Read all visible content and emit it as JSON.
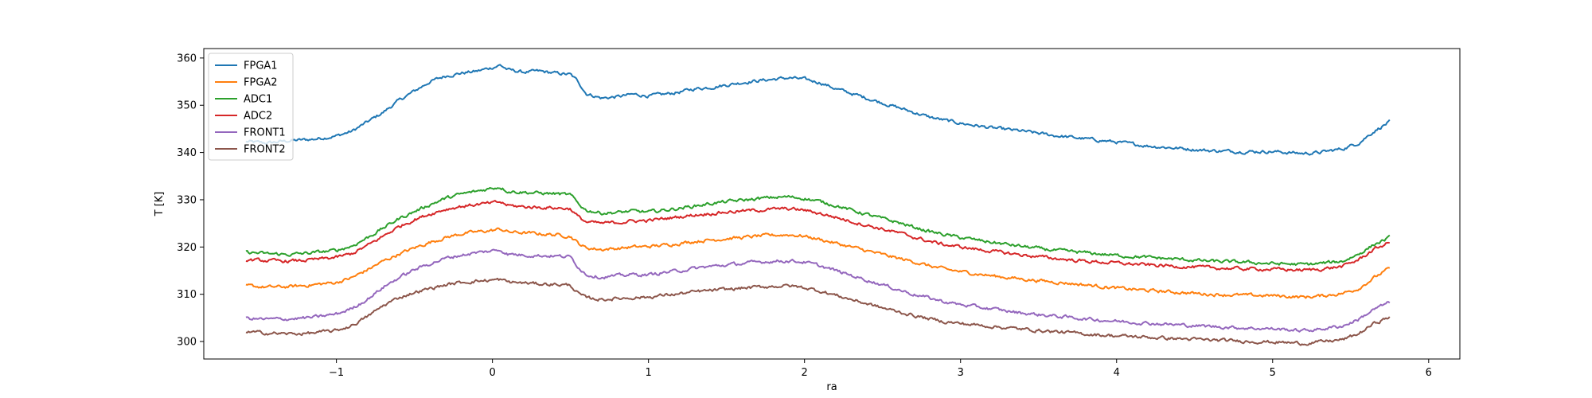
{
  "chart_data": {
    "type": "line",
    "title": "",
    "xlabel": "ra",
    "ylabel": "T [K]",
    "xlim": [
      -1.85,
      6.2
    ],
    "ylim": [
      296.3,
      362
    ],
    "xticks": [
      -1,
      0,
      1,
      2,
      3,
      4,
      5,
      6
    ],
    "xtick_labels": [
      "−1",
      "0",
      "1",
      "2",
      "3",
      "4",
      "5",
      "6"
    ],
    "yticks": [
      300,
      310,
      320,
      330,
      340,
      350,
      360
    ],
    "ytick_labels": [
      "300",
      "310",
      "320",
      "330",
      "340",
      "350",
      "360"
    ],
    "grid": false,
    "legend_position": "upper left",
    "series": [
      {
        "name": "FPGA1",
        "color": "#1f77b4",
        "x": [
          -1.58,
          -1.45,
          -1.3,
          -1.15,
          -1.0,
          -0.9,
          -0.8,
          -0.7,
          -0.6,
          -0.5,
          -0.4,
          -0.3,
          -0.2,
          -0.1,
          0.0,
          0.05,
          0.1,
          0.2,
          0.3,
          0.4,
          0.5,
          0.55,
          0.6,
          0.7,
          0.8,
          0.9,
          1.0,
          1.1,
          1.2,
          1.3,
          1.4,
          1.5,
          1.6,
          1.7,
          1.8,
          1.9,
          2.0,
          2.1,
          2.2,
          2.3,
          2.4,
          2.5,
          2.6,
          2.7,
          2.8,
          2.9,
          3.0,
          3.2,
          3.4,
          3.6,
          3.8,
          4.0,
          4.2,
          4.4,
          4.6,
          4.8,
          5.0,
          5.2,
          5.3,
          5.45,
          5.55,
          5.65,
          5.75
        ],
        "y": [
          342.3,
          342.0,
          342.5,
          342.8,
          343.5,
          344.5,
          346.5,
          348.5,
          351.0,
          353.0,
          355.0,
          356.2,
          356.8,
          357.2,
          358.0,
          358.5,
          357.5,
          357.0,
          357.2,
          356.8,
          356.5,
          355.0,
          352.5,
          351.5,
          351.8,
          352.3,
          352.0,
          352.3,
          352.8,
          353.5,
          353.8,
          354.3,
          354.8,
          355.2,
          355.5,
          355.8,
          355.5,
          354.8,
          353.5,
          352.5,
          351.5,
          350.5,
          349.5,
          348.5,
          347.5,
          346.8,
          346.2,
          345.2,
          344.5,
          343.6,
          342.9,
          342.2,
          341.4,
          340.9,
          340.4,
          340.2,
          340.2,
          339.8,
          340.0,
          340.8,
          342.0,
          344.5,
          346.5
        ]
      },
      {
        "name": "FPGA2",
        "color": "#ff7f0e",
        "x": [
          -1.58,
          -1.45,
          -1.3,
          -1.15,
          -1.0,
          -0.9,
          -0.8,
          -0.7,
          -0.6,
          -0.5,
          -0.4,
          -0.3,
          -0.2,
          -0.1,
          0.0,
          0.05,
          0.1,
          0.2,
          0.3,
          0.4,
          0.5,
          0.55,
          0.6,
          0.7,
          0.8,
          0.9,
          1.0,
          1.1,
          1.2,
          1.3,
          1.4,
          1.5,
          1.6,
          1.7,
          1.8,
          1.9,
          2.0,
          2.1,
          2.2,
          2.3,
          2.4,
          2.5,
          2.6,
          2.7,
          2.8,
          2.9,
          3.0,
          3.2,
          3.4,
          3.6,
          3.8,
          4.0,
          4.2,
          4.4,
          4.6,
          4.8,
          5.0,
          5.2,
          5.3,
          5.45,
          5.55,
          5.65,
          5.75
        ],
        "y": [
          311.8,
          311.5,
          311.6,
          312.0,
          312.5,
          313.5,
          315.2,
          317.0,
          318.5,
          319.8,
          321.0,
          322.0,
          322.8,
          323.2,
          323.5,
          323.8,
          323.2,
          323.0,
          322.8,
          322.6,
          322.3,
          320.8,
          319.8,
          319.5,
          319.7,
          320.0,
          320.1,
          320.4,
          320.8,
          321.2,
          321.5,
          321.8,
          322.0,
          322.3,
          322.5,
          322.6,
          322.3,
          321.6,
          320.8,
          320.0,
          319.2,
          318.4,
          317.6,
          316.9,
          316.0,
          315.3,
          314.8,
          313.9,
          313.2,
          312.6,
          312.0,
          311.3,
          310.8,
          310.4,
          310.0,
          309.8,
          309.7,
          309.4,
          309.6,
          310.2,
          311.2,
          313.5,
          315.5
        ]
      },
      {
        "name": "ADC1",
        "color": "#2ca02c",
        "x": [
          -1.58,
          -1.45,
          -1.3,
          -1.15,
          -1.0,
          -0.9,
          -0.8,
          -0.7,
          -0.6,
          -0.5,
          -0.4,
          -0.3,
          -0.2,
          -0.1,
          0.0,
          0.05,
          0.1,
          0.2,
          0.3,
          0.4,
          0.5,
          0.55,
          0.6,
          0.7,
          0.8,
          0.9,
          1.0,
          1.1,
          1.2,
          1.3,
          1.4,
          1.5,
          1.6,
          1.7,
          1.8,
          1.9,
          2.0,
          2.1,
          2.2,
          2.3,
          2.4,
          2.5,
          2.6,
          2.7,
          2.8,
          2.9,
          3.0,
          3.2,
          3.4,
          3.6,
          3.8,
          4.0,
          4.2,
          4.4,
          4.6,
          4.8,
          5.0,
          5.2,
          5.3,
          5.45,
          5.55,
          5.65,
          5.75
        ],
        "y": [
          318.9,
          318.6,
          318.4,
          318.8,
          319.3,
          320.2,
          322.0,
          324.0,
          326.0,
          327.5,
          329.0,
          330.3,
          331.2,
          331.8,
          332.5,
          332.7,
          331.8,
          331.6,
          331.4,
          331.3,
          331.0,
          329.2,
          327.8,
          327.2,
          327.3,
          327.6,
          327.4,
          327.8,
          328.2,
          328.7,
          329.2,
          329.6,
          329.9,
          330.2,
          330.5,
          330.6,
          330.3,
          329.6,
          328.8,
          327.8,
          326.9,
          326.0,
          325.2,
          324.2,
          323.3,
          322.6,
          322.0,
          321.0,
          320.1,
          319.3,
          318.8,
          318.2,
          317.8,
          317.4,
          317.0,
          316.8,
          316.5,
          316.3,
          316.5,
          317.0,
          318.5,
          320.5,
          322.0
        ]
      },
      {
        "name": "ADC2",
        "color": "#d62728",
        "x": [
          -1.58,
          -1.45,
          -1.3,
          -1.15,
          -1.0,
          -0.9,
          -0.8,
          -0.7,
          -0.6,
          -0.5,
          -0.4,
          -0.3,
          -0.2,
          -0.1,
          0.0,
          0.05,
          0.1,
          0.2,
          0.3,
          0.4,
          0.5,
          0.55,
          0.6,
          0.7,
          0.8,
          0.9,
          1.0,
          1.1,
          1.2,
          1.3,
          1.4,
          1.5,
          1.6,
          1.7,
          1.8,
          1.9,
          2.0,
          2.1,
          2.2,
          2.3,
          2.4,
          2.5,
          2.6,
          2.7,
          2.8,
          2.9,
          3.0,
          3.2,
          3.4,
          3.6,
          3.8,
          4.0,
          4.2,
          4.4,
          4.6,
          4.8,
          5.0,
          5.2,
          5.3,
          5.45,
          5.55,
          5.65,
          5.75
        ],
        "y": [
          317.3,
          317.1,
          317.0,
          317.3,
          317.8,
          318.6,
          320.3,
          322.3,
          324.3,
          325.8,
          327.0,
          328.0,
          328.6,
          329.0,
          329.3,
          329.5,
          328.8,
          328.5,
          328.4,
          328.3,
          328.1,
          326.4,
          325.3,
          325.0,
          325.2,
          325.5,
          325.6,
          326.0,
          326.4,
          326.8,
          327.1,
          327.4,
          327.6,
          327.8,
          328.0,
          328.1,
          327.8,
          327.1,
          326.3,
          325.4,
          324.6,
          323.8,
          323.0,
          322.1,
          321.2,
          320.5,
          320.0,
          319.1,
          318.3,
          317.6,
          317.0,
          316.6,
          316.2,
          315.9,
          315.6,
          315.4,
          315.3,
          315.1,
          315.3,
          315.9,
          317.3,
          319.5,
          321.0
        ]
      },
      {
        "name": "FRONT1",
        "color": "#9467bd",
        "x": [
          -1.58,
          -1.45,
          -1.3,
          -1.15,
          -1.0,
          -0.9,
          -0.8,
          -0.7,
          -0.6,
          -0.5,
          -0.4,
          -0.3,
          -0.2,
          -0.1,
          0.0,
          0.05,
          0.1,
          0.2,
          0.3,
          0.4,
          0.5,
          0.55,
          0.6,
          0.7,
          0.8,
          0.9,
          1.0,
          1.1,
          1.2,
          1.3,
          1.4,
          1.5,
          1.6,
          1.7,
          1.8,
          1.9,
          2.0,
          2.1,
          2.2,
          2.3,
          2.4,
          2.5,
          2.6,
          2.7,
          2.8,
          2.9,
          3.0,
          3.2,
          3.4,
          3.6,
          3.8,
          4.0,
          4.2,
          4.4,
          4.6,
          4.8,
          5.0,
          5.2,
          5.3,
          5.45,
          5.55,
          5.65,
          5.75
        ],
        "y": [
          304.9,
          304.7,
          304.8,
          305.1,
          305.8,
          307.0,
          309.0,
          311.5,
          313.5,
          315.2,
          316.5,
          317.6,
          318.3,
          318.8,
          319.2,
          319.4,
          318.5,
          318.3,
          318.2,
          318.1,
          317.9,
          315.8,
          314.2,
          313.6,
          313.9,
          314.2,
          314.1,
          314.6,
          315.0,
          315.5,
          315.9,
          316.2,
          316.5,
          316.8,
          317.0,
          317.1,
          316.8,
          316.0,
          315.0,
          314.0,
          313.0,
          312.0,
          311.0,
          310.0,
          309.2,
          308.4,
          307.8,
          306.9,
          306.0,
          305.4,
          304.8,
          304.3,
          303.9,
          303.5,
          303.2,
          302.9,
          302.7,
          302.3,
          302.6,
          303.3,
          304.7,
          306.8,
          308.3
        ]
      },
      {
        "name": "FRONT2",
        "color": "#8c564b",
        "x": [
          -1.58,
          -1.45,
          -1.3,
          -1.15,
          -1.0,
          -0.9,
          -0.8,
          -0.7,
          -0.6,
          -0.5,
          -0.4,
          -0.3,
          -0.2,
          -0.1,
          0.0,
          0.05,
          0.1,
          0.2,
          0.3,
          0.4,
          0.5,
          0.55,
          0.6,
          0.7,
          0.8,
          0.9,
          1.0,
          1.1,
          1.2,
          1.3,
          1.4,
          1.5,
          1.6,
          1.7,
          1.8,
          1.9,
          2.0,
          2.1,
          2.2,
          2.3,
          2.4,
          2.5,
          2.6,
          2.7,
          2.8,
          2.9,
          3.0,
          3.2,
          3.4,
          3.6,
          3.8,
          4.0,
          4.2,
          4.4,
          4.6,
          4.8,
          5.0,
          5.2,
          5.3,
          5.45,
          5.55,
          5.65,
          5.75
        ],
        "y": [
          302.0,
          301.8,
          301.6,
          301.8,
          302.3,
          303.4,
          305.3,
          307.6,
          309.3,
          310.4,
          311.2,
          312.0,
          312.5,
          312.8,
          313.0,
          313.1,
          312.6,
          312.4,
          312.2,
          312.1,
          311.9,
          310.2,
          309.2,
          308.9,
          309.1,
          309.3,
          309.4,
          309.8,
          310.1,
          310.5,
          310.8,
          311.0,
          311.3,
          311.5,
          311.7,
          311.8,
          311.4,
          310.7,
          309.8,
          308.9,
          308.0,
          307.1,
          306.3,
          305.5,
          304.8,
          304.2,
          303.8,
          303.2,
          302.6,
          302.1,
          301.6,
          301.2,
          300.9,
          300.6,
          300.3,
          300.1,
          299.9,
          299.6,
          299.9,
          300.4,
          301.6,
          303.8,
          305.2
        ]
      }
    ]
  }
}
